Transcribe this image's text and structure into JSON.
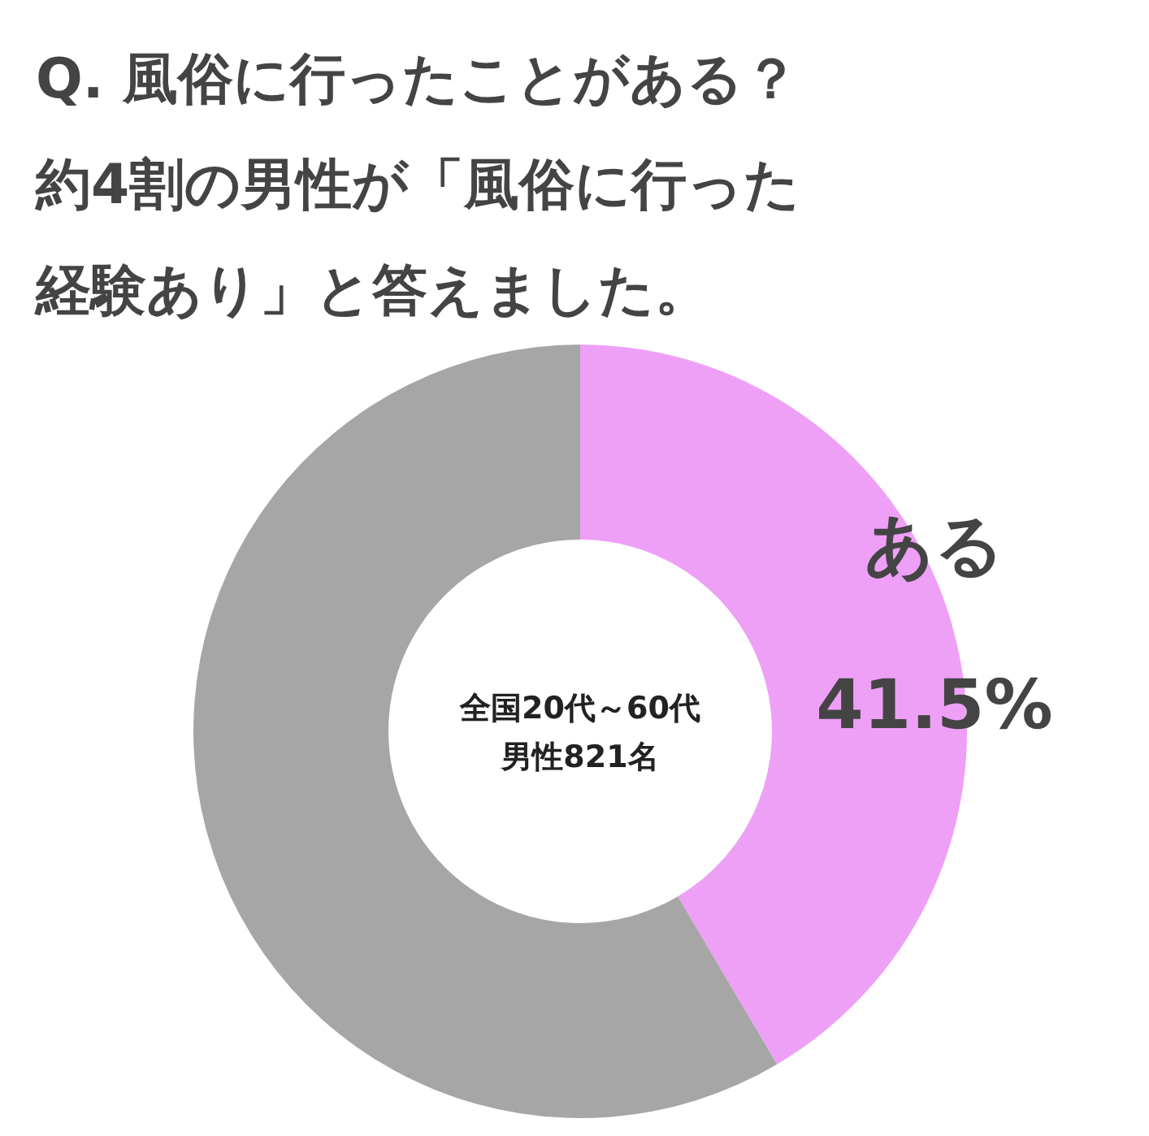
{
  "chart_data": {
    "type": "donut",
    "title": "Q.  風俗に行ったことがある？",
    "subtitle": "約4割の男性が「風俗に行った経験あり」と答えました。",
    "categories": [
      "ある",
      null
    ],
    "values": [
      41.5,
      58.5
    ],
    "colors": [
      "#eea0f6",
      "#a6a6a6"
    ],
    "value_labels": [
      "41.5%",
      null
    ],
    "annotations": [
      "全国20代～60代",
      "男性821名"
    ]
  }
}
